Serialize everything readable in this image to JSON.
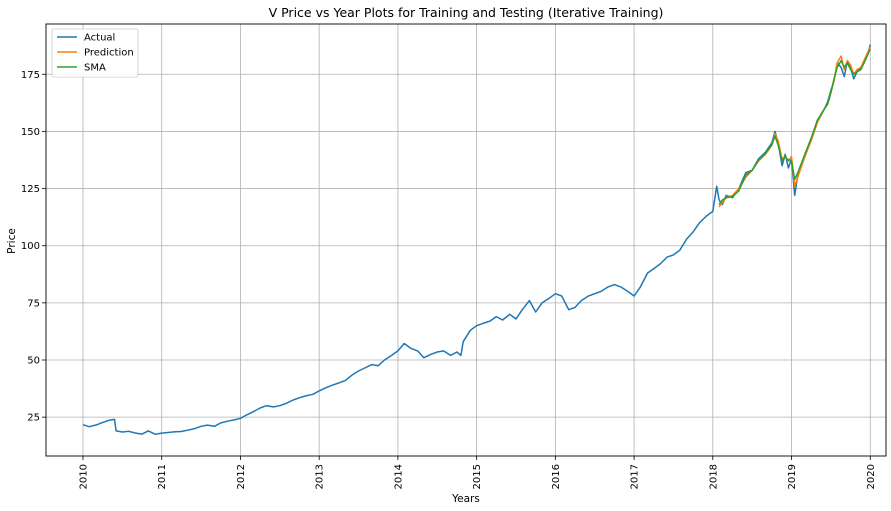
{
  "chart_data": {
    "type": "line",
    "title": "V Price vs Year Plots for Training and Testing (Iterative Training)",
    "xlabel": "Years",
    "ylabel": "Price",
    "x_range": [
      2009.53,
      2020.2
    ],
    "ylim": [
      8,
      197
    ],
    "x_ticks": [
      "2010",
      "2011",
      "2012",
      "2013",
      "2014",
      "2015",
      "2016",
      "2017",
      "2018",
      "2019",
      "2020"
    ],
    "y_ticks": [
      25,
      50,
      75,
      100,
      125,
      150,
      175
    ],
    "grid": true,
    "legend_position": "top-left",
    "series": [
      {
        "name": "Actual",
        "color": "#1f77b4",
        "x": [
          2010.0,
          2010.08,
          2010.17,
          2010.25,
          2010.33,
          2010.4,
          2010.42,
          2010.5,
          2010.58,
          2010.67,
          2010.75,
          2010.83,
          2010.92,
          2011.0,
          2011.08,
          2011.17,
          2011.25,
          2011.33,
          2011.42,
          2011.5,
          2011.58,
          2011.67,
          2011.75,
          2011.83,
          2011.92,
          2012.0,
          2012.08,
          2012.17,
          2012.25,
          2012.33,
          2012.42,
          2012.5,
          2012.58,
          2012.67,
          2012.75,
          2012.83,
          2012.92,
          2013.0,
          2013.08,
          2013.17,
          2013.25,
          2013.33,
          2013.42,
          2013.5,
          2013.58,
          2013.67,
          2013.75,
          2013.83,
          2013.92,
          2014.0,
          2014.08,
          2014.17,
          2014.25,
          2014.33,
          2014.42,
          2014.5,
          2014.58,
          2014.67,
          2014.75,
          2014.8,
          2014.83,
          2014.92,
          2015.0,
          2015.08,
          2015.17,
          2015.25,
          2015.33,
          2015.42,
          2015.5,
          2015.58,
          2015.67,
          2015.75,
          2015.83,
          2015.92,
          2016.0,
          2016.08,
          2016.17,
          2016.25,
          2016.33,
          2016.42,
          2016.5,
          2016.58,
          2016.67,
          2016.75,
          2016.83,
          2016.92,
          2017.0,
          2017.08,
          2017.17,
          2017.25,
          2017.33,
          2017.42,
          2017.5,
          2017.58,
          2017.67,
          2017.75,
          2017.83,
          2017.92,
          2018.0,
          2018.05,
          2018.08,
          2018.12,
          2018.17,
          2018.25,
          2018.33,
          2018.42,
          2018.5,
          2018.58,
          2018.67,
          2018.75,
          2018.79,
          2018.83,
          2018.88,
          2018.92,
          2018.96,
          2019.0,
          2019.04,
          2019.08,
          2019.17,
          2019.25,
          2019.33,
          2019.42,
          2019.46,
          2019.5,
          2019.54,
          2019.58,
          2019.63,
          2019.67,
          2019.71,
          2019.75,
          2019.79,
          2019.83,
          2019.88,
          2019.92,
          2019.96,
          2020.0
        ],
        "values": [
          21.7,
          20.8,
          21.6,
          22.7,
          23.6,
          24.0,
          19.0,
          18.5,
          18.8,
          18.0,
          17.6,
          19.0,
          17.5,
          18.0,
          18.3,
          18.6,
          18.7,
          19.3,
          20.0,
          21.0,
          21.5,
          21.0,
          22.5,
          23.2,
          23.8,
          24.5,
          26.0,
          27.5,
          29.0,
          30.0,
          29.5,
          30.0,
          31.0,
          32.5,
          33.5,
          34.3,
          35.0,
          36.5,
          37.8,
          39.0,
          40.0,
          41.0,
          43.5,
          45.2,
          46.5,
          48.0,
          47.5,
          50.0,
          52.0,
          54.0,
          57.2,
          55.0,
          54.0,
          51.0,
          52.5,
          53.5,
          54.0,
          52.0,
          53.5,
          52.0,
          58.0,
          63.0,
          65.0,
          66.0,
          67.0,
          69.0,
          67.5,
          70.0,
          68.0,
          72.0,
          76.0,
          71.0,
          75.0,
          77.0,
          79.0,
          78.0,
          72.0,
          73.0,
          76.0,
          78.0,
          79.0,
          80.0,
          82.0,
          83.0,
          82.0,
          80.0,
          78.0,
          82.0,
          88.0,
          90.0,
          92.0,
          95.0,
          96.0,
          98.0,
          103.0,
          106.0,
          110.0,
          113.0,
          115.0,
          126.0,
          120.0,
          118.0,
          122.0,
          121.0,
          125.0,
          132.0,
          133.0,
          138.0,
          141.0,
          145.0,
          150.0,
          145.0,
          135.0,
          140.0,
          134.0,
          138.0,
          122.0,
          131.0,
          140.0,
          147.0,
          155.0,
          160.0,
          163.0,
          168.0,
          172.0,
          180.0,
          178.0,
          174.0,
          181.0,
          178.0,
          173.0,
          176.0,
          178.0,
          180.0,
          183.0,
          188.0
        ]
      },
      {
        "name": "Prediction",
        "color": "#ff7f0e",
        "x": [
          2018.08,
          2018.12,
          2018.17,
          2018.25,
          2018.33,
          2018.42,
          2018.5,
          2018.58,
          2018.67,
          2018.75,
          2018.79,
          2018.83,
          2018.88,
          2018.92,
          2018.96,
          2019.0,
          2019.04,
          2019.08,
          2019.17,
          2019.25,
          2019.33,
          2019.42,
          2019.46,
          2019.5,
          2019.54,
          2019.58,
          2019.63,
          2019.67,
          2019.71,
          2019.75,
          2019.79,
          2019.83,
          2019.88,
          2019.92,
          2019.96,
          2020.0
        ],
        "values": [
          117.0,
          119.0,
          121.0,
          122.0,
          125.0,
          130.0,
          133.0,
          137.0,
          140.0,
          144.0,
          149.0,
          146.0,
          138.0,
          139.0,
          137.0,
          139.0,
          126.0,
          130.0,
          139.0,
          146.0,
          154.0,
          160.0,
          162.0,
          167.0,
          172.0,
          180.0,
          183.0,
          177.0,
          181.0,
          179.0,
          175.0,
          177.0,
          178.0,
          181.0,
          184.0,
          187.0
        ]
      },
      {
        "name": "SMA",
        "color": "#2ca02c",
        "x": [
          2018.08,
          2018.12,
          2018.17,
          2018.25,
          2018.33,
          2018.42,
          2018.5,
          2018.58,
          2018.67,
          2018.75,
          2018.79,
          2018.83,
          2018.88,
          2018.92,
          2018.96,
          2019.0,
          2019.04,
          2019.08,
          2019.17,
          2019.25,
          2019.33,
          2019.42,
          2019.46,
          2019.5,
          2019.54,
          2019.58,
          2019.63,
          2019.67,
          2019.71,
          2019.75,
          2019.79,
          2019.83,
          2019.88,
          2019.92,
          2019.96,
          2020.0
        ],
        "values": [
          118.0,
          120.0,
          121.0,
          121.5,
          124.0,
          131.0,
          133.0,
          137.5,
          140.5,
          144.0,
          148.0,
          144.0,
          137.0,
          139.0,
          137.5,
          137.0,
          129.0,
          132.0,
          140.0,
          147.0,
          155.0,
          160.0,
          162.0,
          167.0,
          173.0,
          178.0,
          181.0,
          178.0,
          180.0,
          177.0,
          175.0,
          176.0,
          177.0,
          180.0,
          183.0,
          186.0
        ]
      }
    ]
  }
}
